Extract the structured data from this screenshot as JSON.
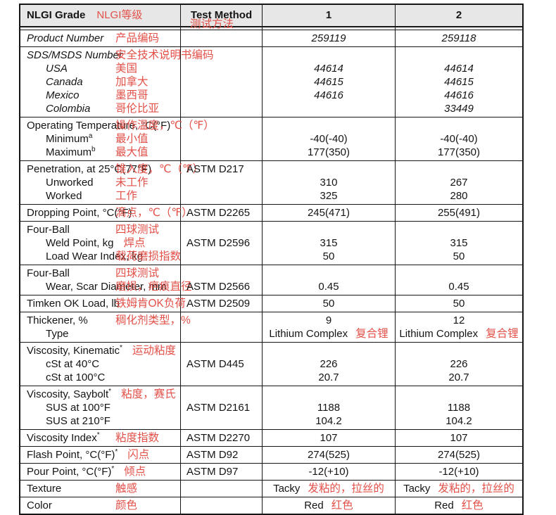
{
  "annotation_color": "#e25048",
  "header_bg": "#e7e7e7",
  "header": {
    "col_label": "NLGI Grade",
    "col_label_annotation": "NLGI等级",
    "col_method": "Test Method",
    "col_method_annotation": "测试方法",
    "col1": "1",
    "col2": "2"
  },
  "rows": [
    {
      "name": "product-number",
      "label": [
        {
          "t": "Product Number",
          "it": true,
          "a": "产品编码"
        }
      ],
      "method": "",
      "vi": true,
      "v1": [
        "259119"
      ],
      "v2": [
        "259118"
      ]
    },
    {
      "name": "sds-msds-number",
      "label": [
        {
          "t": "SDS/MSDS Number",
          "it": true,
          "a": "安全技术说明书编码"
        },
        {
          "t": "USA",
          "it": true,
          "i": 1,
          "a": "美国"
        },
        {
          "t": "Canada",
          "it": true,
          "i": 1,
          "a": "加拿大"
        },
        {
          "t": "Mexico",
          "it": true,
          "i": 1,
          "a": "墨西哥"
        },
        {
          "t": "Colombia",
          "it": true,
          "i": 1,
          "a": "哥伦比亚"
        }
      ],
      "method": "",
      "vi": true,
      "v1": [
        "",
        "44614",
        "44615",
        "44616"
      ],
      "v2": [
        "",
        "44614",
        "44615",
        "44616",
        "33449"
      ]
    },
    {
      "name": "operating-temperature",
      "label": [
        {
          "t": "Operating Temperature, °C(°F)",
          "a": "操作温度，℃（℉）"
        },
        {
          "t": "Minimum",
          "sup": "a",
          "i": 1,
          "a": "最小值"
        },
        {
          "t": "Maximum",
          "sup": "b",
          "i": 1,
          "a": "最大值"
        }
      ],
      "method": "",
      "v1": [
        "",
        "-40(-40)",
        "177(350)"
      ],
      "v2": [
        "",
        "-40(-40)",
        "177(350)"
      ]
    },
    {
      "name": "penetration",
      "label": [
        {
          "t": "Penetration, at 25°C(77°F)",
          "a": "锥入度，℃（℉）"
        },
        {
          "t": "Unworked",
          "i": 1,
          "a": "未工作"
        },
        {
          "t": "Worked",
          "i": 1,
          "a": "工作"
        }
      ],
      "method": "ASTM D217",
      "v1": [
        "",
        "310",
        "325"
      ],
      "v2": [
        "",
        "267",
        "280"
      ]
    },
    {
      "name": "dropping-point",
      "label": [
        {
          "t": "Dropping Point, °C(°F)",
          "a": "滴点，℃（℉）"
        }
      ],
      "method": "ASTM D2265",
      "v1": [
        "245(471)"
      ],
      "v2": [
        "255(491)"
      ]
    },
    {
      "name": "four-ball-weld",
      "label": [
        {
          "t": "Four-Ball",
          "a": "四球测试"
        },
        {
          "t": "Weld Point, kg",
          "i": 1,
          "a": "焊点"
        },
        {
          "t": "Load Wear Index, kg",
          "i": 1,
          "a": "载荷磨损指数"
        }
      ],
      "method": "ASTM D2596",
      "moff": 1,
      "v1": [
        "",
        "315",
        "50"
      ],
      "v2": [
        "",
        "315",
        "50"
      ]
    },
    {
      "name": "four-ball-wear",
      "label": [
        {
          "t": "Four-Ball",
          "a": "四球测试"
        },
        {
          "t": "Wear, Scar Diameter, mm",
          "i": 1,
          "a": "磨损，疤痕直径"
        }
      ],
      "method": "ASTM D2566",
      "moff": 1,
      "v1": [
        "",
        "0.45"
      ],
      "v2": [
        "",
        "0.45"
      ]
    },
    {
      "name": "timken-ok-load",
      "label": [
        {
          "t": "Timken OK Load, lb",
          "a": "铁姆肯OK负荷"
        }
      ],
      "method": "ASTM D2509",
      "v1": [
        "50"
      ],
      "v2": [
        "50"
      ]
    },
    {
      "name": "thickener",
      "label": [
        {
          "t": "Thickener, %",
          "a": "稠化剂类型，%"
        },
        {
          "t": "Type",
          "i": 1
        }
      ],
      "method": "",
      "v1": [
        "9",
        {
          "t": "Lithium Complex",
          "a": "复合锂"
        }
      ],
      "v2": [
        "12",
        {
          "t": "Lithium Complex",
          "a": "复合锂"
        }
      ]
    },
    {
      "name": "viscosity-kinematic",
      "label": [
        {
          "t": "Viscosity, Kinematic",
          "sup": "*",
          "a": "运动粘度"
        },
        {
          "t": "cSt at 40°C",
          "i": 1
        },
        {
          "t": "cSt at 100°C",
          "i": 1
        }
      ],
      "method": "ASTM D445",
      "moff": 1,
      "v1": [
        "",
        "226",
        "20.7"
      ],
      "v2": [
        "",
        "226",
        "20.7"
      ]
    },
    {
      "name": "viscosity-saybolt",
      "label": [
        {
          "t": "Viscosity, Saybolt",
          "sup": "*",
          "a": "粘度，赛氏"
        },
        {
          "t": "SUS at 100°F",
          "i": 1
        },
        {
          "t": "SUS at 210°F",
          "i": 1
        }
      ],
      "method": "ASTM D2161",
      "moff": 1,
      "v1": [
        "",
        "1188",
        "104.2"
      ],
      "v2": [
        "",
        "1188",
        "104.2"
      ]
    },
    {
      "name": "viscosity-index",
      "label": [
        {
          "t": "Viscosity Index",
          "sup": "*",
          "a": "粘度指数"
        }
      ],
      "method": "ASTM D2270",
      "v1": [
        "107"
      ],
      "v2": [
        "107"
      ]
    },
    {
      "name": "flash-point",
      "label": [
        {
          "t": "Flash Point, °C(°F)",
          "sup": "*",
          "a": "闪点"
        }
      ],
      "method": "ASTM D92",
      "v1": [
        "274(525)"
      ],
      "v2": [
        "274(525)"
      ]
    },
    {
      "name": "pour-point",
      "label": [
        {
          "t": "Pour Point, °C(°F)",
          "sup": "*",
          "a": "倾点"
        }
      ],
      "method": "ASTM D97",
      "v1": [
        "-12(+10)"
      ],
      "v2": [
        "-12(+10)"
      ]
    },
    {
      "name": "texture",
      "label": [
        {
          "t": "Texture",
          "a": "触感"
        }
      ],
      "method": "",
      "v1": [
        {
          "t": "Tacky",
          "a": "发粘的，拉丝的"
        }
      ],
      "v2": [
        {
          "t": "Tacky",
          "a": "发粘的，拉丝的"
        }
      ]
    },
    {
      "name": "color",
      "label": [
        {
          "t": "Color",
          "a": "颜色"
        }
      ],
      "method": "",
      "v1": [
        {
          "t": "Red",
          "a": "红色"
        }
      ],
      "v2": [
        {
          "t": "Red",
          "a": "红色"
        }
      ]
    }
  ]
}
